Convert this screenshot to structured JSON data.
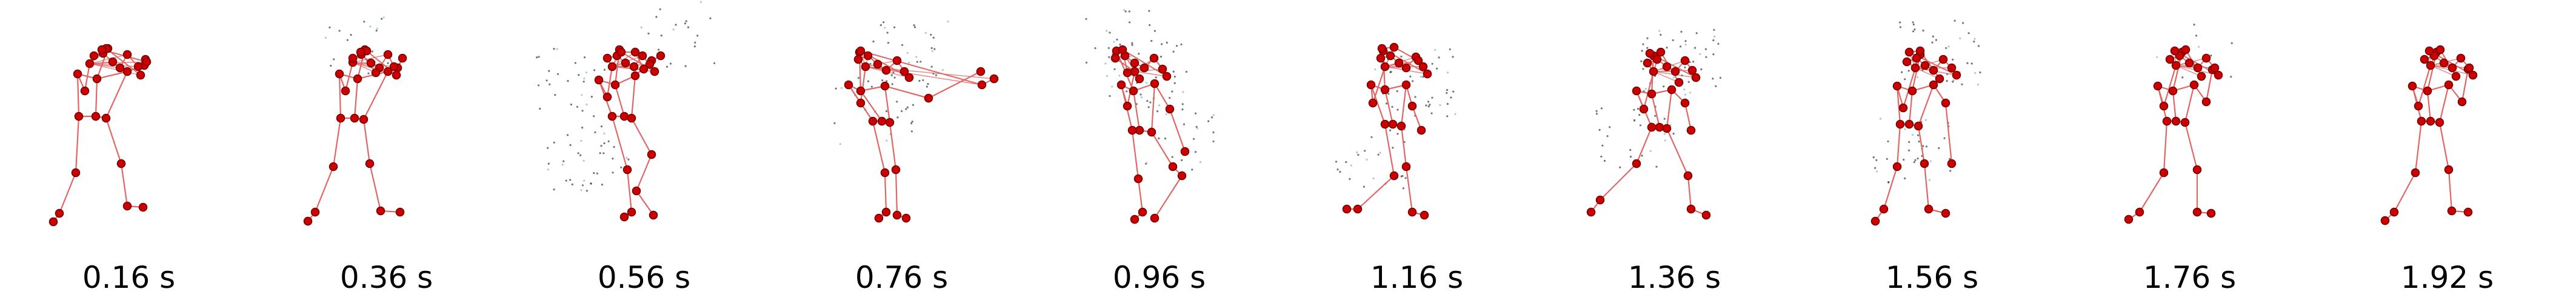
{
  "figure": {
    "colors": {
      "bone": "#e06565",
      "joint": "#cc0000",
      "joint_outline": "#6e0000",
      "scatter": "#444444",
      "scatter_light": "#8fb8c8"
    },
    "frames": [
      {
        "time_label": "0.16 s"
      },
      {
        "time_label": "0.36 s"
      },
      {
        "time_label": "0.56 s"
      },
      {
        "time_label": "0.76 s"
      },
      {
        "time_label": "0.96 s"
      },
      {
        "time_label": "1.16 s"
      },
      {
        "time_label": "1.36 s"
      },
      {
        "time_label": "1.56 s"
      },
      {
        "time_label": "1.76 s"
      },
      {
        "time_label": "1.92 s"
      }
    ]
  }
}
